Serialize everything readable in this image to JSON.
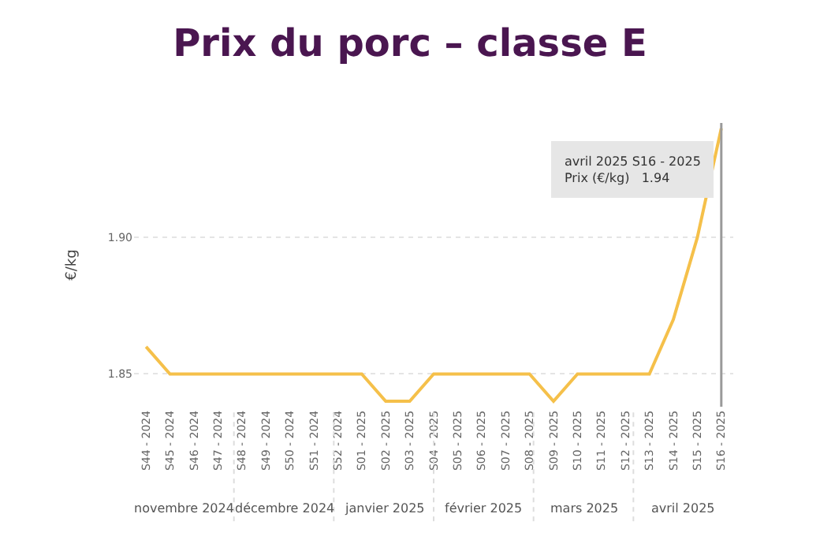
{
  "chart_data": {
    "type": "line",
    "title": "Prix du porc – classe E",
    "ylabel": "€/kg",
    "categories": [
      "S44 - 2024",
      "S45 - 2024",
      "S46 - 2024",
      "S47 - 2024",
      "S48 - 2024",
      "S49 - 2024",
      "S50 - 2024",
      "S51 - 2024",
      "S52 - 2024",
      "S01 - 2025",
      "S02 - 2025",
      "S03 - 2025",
      "S04 - 2025",
      "S05 - 2025",
      "S06 - 2025",
      "S07 - 2025",
      "S08 - 2025",
      "S09 - 2025",
      "S10 - 2025",
      "S11 - 2025",
      "S12 - 2025",
      "S13 - 2025",
      "S14 - 2025",
      "S15 - 2025",
      "S16 - 2025"
    ],
    "series": [
      {
        "color": "#f5c04a",
        "values": [
          1.86,
          1.85,
          1.85,
          1.85,
          1.85,
          1.85,
          1.85,
          1.85,
          1.85,
          1.85,
          1.84,
          1.84,
          1.85,
          1.85,
          1.85,
          1.85,
          1.85,
          1.84,
          1.85,
          1.85,
          1.85,
          1.85,
          1.87,
          1.9,
          1.94
        ]
      }
    ],
    "ylim": [
      1.838,
      1.942
    ],
    "yticks": [
      1.85,
      {
        "value": 1.9,
        "label": "1.90"
      }
    ],
    "grid": "y",
    "marker": "none",
    "line_style": "solid",
    "ref_lines": [
      {
        "axis": "x",
        "value": "S16 - 2025",
        "color": "#9a9a9a"
      }
    ],
    "annotations": [
      "novembre 2024",
      "décembre 2024",
      "janvier 2025",
      "février 2025",
      "mars 2025",
      "avril 2025",
      {
        "text": "avril 2025 S16 - 2025\nPrix (€/kg)   1.94",
        "x": "S16 - 2025",
        "y": 1.94
      }
    ]
  }
}
